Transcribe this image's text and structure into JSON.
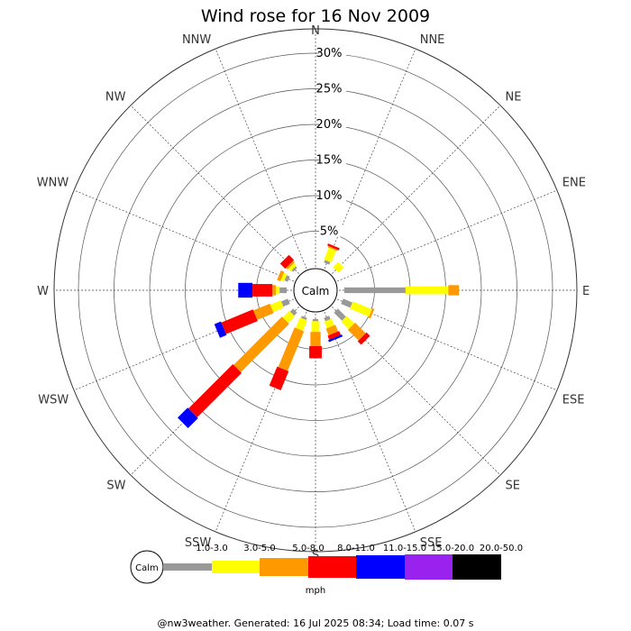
{
  "chart_data": {
    "type": "windrose",
    "title": "Wind rose for 16 Nov 2009",
    "directions": [
      "N",
      "NNE",
      "NE",
      "ENE",
      "E",
      "ESE",
      "SE",
      "SSE",
      "S",
      "SSW",
      "SW",
      "WSW",
      "W",
      "WNW",
      "NW",
      "NNW"
    ],
    "radial_ticks": [
      "5%",
      "10%",
      "15%",
      "20%",
      "25%",
      "30%"
    ],
    "radial_max_pct": 30,
    "calm_label": "Calm",
    "unit": "mph",
    "speed_bins": [
      {
        "label": "1.0-3.0",
        "color": "#999999"
      },
      {
        "label": "3.0-5.0",
        "color": "#ffff00"
      },
      {
        "label": "5.0-8.0",
        "color": "#ff9900"
      },
      {
        "label": "8.0-11.0",
        "color": "#ff0000"
      },
      {
        "label": "11.0-15.0",
        "color": "#0000ff"
      },
      {
        "label": "15.0-20.0",
        "color": "#9922ee"
      },
      {
        "label": "20.0-50.0",
        "color": "#000000"
      }
    ],
    "series": [
      {
        "direction": "N",
        "values": [
          0,
          0,
          0,
          0,
          0,
          0,
          0
        ]
      },
      {
        "direction": "NNE",
        "values": [
          0.4,
          1.8,
          0.2,
          0.3,
          0,
          0,
          0
        ]
      },
      {
        "direction": "NE",
        "values": [
          0,
          1.0,
          0,
          0,
          0,
          0,
          0
        ]
      },
      {
        "direction": "ENE",
        "values": [
          0,
          0,
          0,
          0,
          0,
          0,
          0
        ]
      },
      {
        "direction": "E",
        "values": [
          8.6,
          6.0,
          1.5,
          0,
          0,
          0,
          0
        ]
      },
      {
        "direction": "ESE",
        "values": [
          1.4,
          2.9,
          0.3,
          0,
          0,
          0,
          0
        ]
      },
      {
        "direction": "SE",
        "values": [
          1.6,
          1.5,
          2.1,
          0.7,
          0,
          0,
          0
        ]
      },
      {
        "direction": "SSE",
        "values": [
          0.5,
          1.0,
          1.0,
          0.6,
          0.3,
          0,
          0
        ]
      },
      {
        "direction": "S",
        "values": [
          0.3,
          1.5,
          2.0,
          1.7,
          0,
          0,
          0
        ]
      },
      {
        "direction": "SSW",
        "values": [
          0.3,
          1.6,
          6.0,
          2.9,
          0,
          0,
          0
        ]
      },
      {
        "direction": "SW",
        "values": [
          0.6,
          1.3,
          9.6,
          8.8,
          2.0,
          0,
          0
        ]
      },
      {
        "direction": "WSW",
        "values": [
          1.0,
          1.6,
          2.5,
          4.8,
          1.0,
          0,
          0
        ]
      },
      {
        "direction": "W",
        "values": [
          1.0,
          0.5,
          0.5,
          2.8,
          2.0,
          0,
          0
        ]
      },
      {
        "direction": "WNW",
        "values": [
          0.5,
          0.5,
          0.5,
          0,
          0,
          0,
          0
        ]
      },
      {
        "direction": "NW",
        "values": [
          0.3,
          0.5,
          0.3,
          1.0,
          0,
          0,
          0
        ]
      },
      {
        "direction": "NNW",
        "values": [
          0,
          0,
          0,
          0,
          0,
          0,
          0
        ]
      }
    ]
  },
  "footer": "@nw3weather. Generated: 16 Jul 2025 08:34; Load time: 0.07 s"
}
